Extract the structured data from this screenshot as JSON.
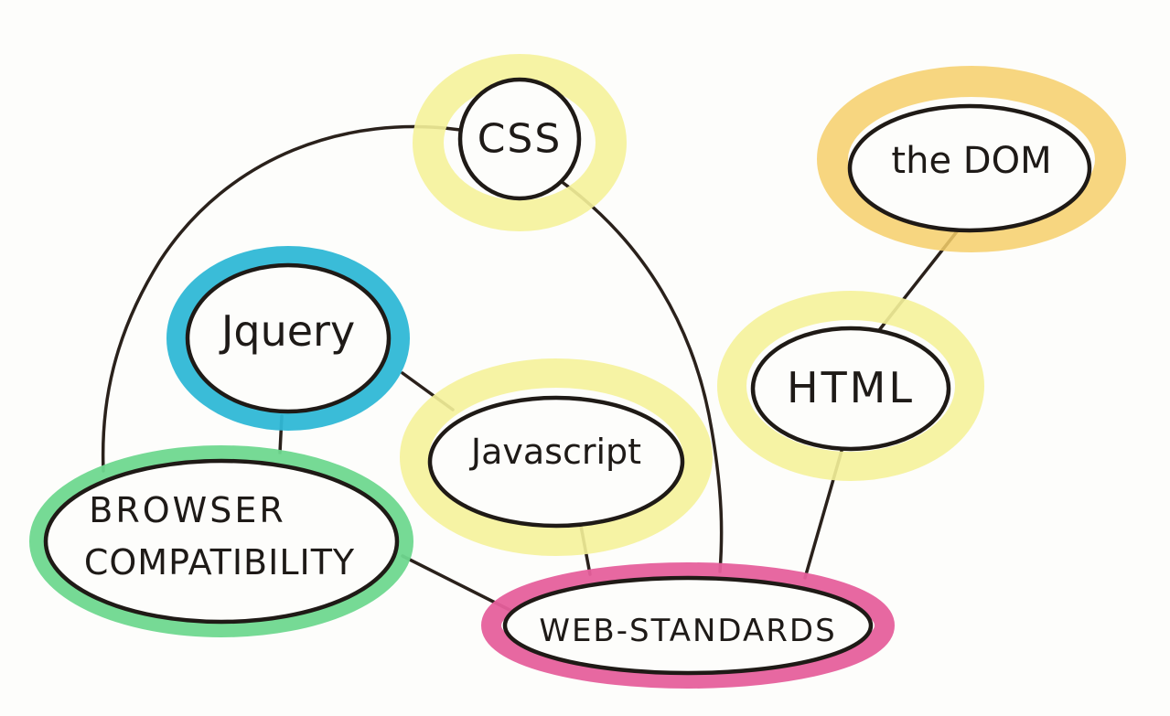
{
  "colors": {
    "background": "#fdfdfb",
    "ink": "#1f1a16",
    "highlight_yellow": "#f5f29a",
    "highlight_orange": "#f6cf6a",
    "highlight_blue": "#2fb8d6",
    "highlight_green": "#6fd88f",
    "highlight_pink": "#e6609c"
  },
  "nodes": {
    "css": {
      "label": "CSS",
      "highlight": "yellow"
    },
    "dom": {
      "label": "the DOM",
      "highlight": "orange"
    },
    "jquery": {
      "label": "Jquery",
      "highlight": "blue"
    },
    "javascript": {
      "label": "Javascript",
      "highlight": "yellow"
    },
    "html": {
      "label": "HTML",
      "highlight": "yellow"
    },
    "browser": {
      "label_line1": "BROWSER",
      "label_line2": "COMPATIBILITY",
      "highlight": "green"
    },
    "web_standards": {
      "label": "WEB-STANDARDS",
      "highlight": "pink"
    }
  },
  "edges": [
    {
      "from": "css",
      "to": "browser"
    },
    {
      "from": "css",
      "to": "web_standards"
    },
    {
      "from": "dom",
      "to": "html"
    },
    {
      "from": "html",
      "to": "web_standards"
    },
    {
      "from": "jquery",
      "to": "javascript"
    },
    {
      "from": "jquery",
      "to": "browser"
    },
    {
      "from": "javascript",
      "to": "web_standards"
    },
    {
      "from": "browser",
      "to": "web_standards"
    }
  ]
}
